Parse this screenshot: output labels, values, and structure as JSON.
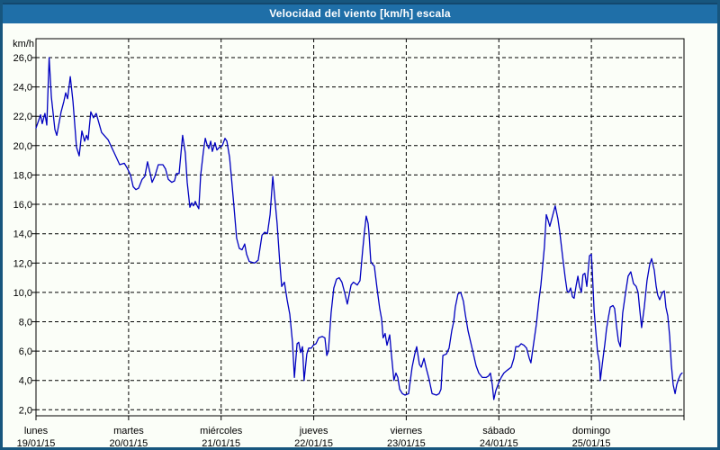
{
  "window": {
    "title": "Velocidad del viento [km/h] escala"
  },
  "colors": {
    "titlebar_bg": "#1F6FA8",
    "window_border": "#17567E",
    "background": "#FBFEF8",
    "series_line": "#0000C0",
    "grid": "#000000"
  },
  "chart_data": {
    "type": "line",
    "title": "Velocidad del viento [km/h] escala",
    "ylabel": "km/h",
    "xlabel": "",
    "ylim": [
      2,
      26
    ],
    "xlim_hours": [
      0,
      168
    ],
    "grid": "dashed",
    "legend": "none",
    "ytick_values": [
      2,
      4,
      6,
      8,
      10,
      12,
      14,
      16,
      18,
      20,
      22,
      24,
      26
    ],
    "ytick_labels": [
      "2,0",
      "4,0",
      "6,0",
      "8,0",
      "10,0",
      "12,0",
      "14,0",
      "16,0",
      "18,0",
      "20,0",
      "22,0",
      "24,0",
      "26,0"
    ],
    "days": [
      {
        "name": "lunes",
        "date": "19/01/15"
      },
      {
        "name": "martes",
        "date": "20/01/15"
      },
      {
        "name": "miércoles",
        "date": "21/01/15"
      },
      {
        "name": "jueves",
        "date": "22/01/15"
      },
      {
        "name": "viernes",
        "date": "23/01/15"
      },
      {
        "name": "sábado",
        "date": "24/01/15"
      },
      {
        "name": "domingo",
        "date": "25/01/15"
      }
    ],
    "series": [
      {
        "name": "Velocidad del viento [km/h]",
        "x_unit": "hours_from_start",
        "points": [
          [
            0,
            21.2
          ],
          [
            1.2,
            22.1
          ],
          [
            1.6,
            21.5
          ],
          [
            2.3,
            22.2
          ],
          [
            2.8,
            21.4
          ],
          [
            3.4,
            26
          ],
          [
            4,
            23.3
          ],
          [
            4.9,
            21.1
          ],
          [
            5.4,
            20.7
          ],
          [
            6.5,
            22.3
          ],
          [
            7.2,
            23
          ],
          [
            7.7,
            23.6
          ],
          [
            8.2,
            23.2
          ],
          [
            8.9,
            24.7
          ],
          [
            9.6,
            23
          ],
          [
            10.5,
            19.9
          ],
          [
            11.2,
            19.3
          ],
          [
            11.9,
            21
          ],
          [
            12.6,
            20.3
          ],
          [
            13.1,
            20.7
          ],
          [
            13.5,
            20.4
          ],
          [
            14.2,
            22.3
          ],
          [
            14.9,
            21.9
          ],
          [
            15.6,
            22.2
          ],
          [
            17,
            20.9
          ],
          [
            18.7,
            20.4
          ],
          [
            20.3,
            19.5
          ],
          [
            21.7,
            18.7
          ],
          [
            22.9,
            18.8
          ],
          [
            23.6,
            18.5
          ],
          [
            24.5,
            18
          ],
          [
            25.2,
            17.2
          ],
          [
            25.9,
            17
          ],
          [
            26.6,
            17.1
          ],
          [
            27.5,
            17.7
          ],
          [
            28.2,
            17.9
          ],
          [
            28.9,
            18.9
          ],
          [
            29.6,
            18.1
          ],
          [
            30.1,
            17.5
          ],
          [
            30.8,
            17.9
          ],
          [
            31.7,
            18.7
          ],
          [
            32.9,
            18.7
          ],
          [
            33.6,
            18.4
          ],
          [
            34.3,
            17.7
          ],
          [
            35.2,
            17.5
          ],
          [
            35.9,
            17.6
          ],
          [
            36.4,
            18.1
          ],
          [
            37.1,
            18.1
          ],
          [
            38,
            20.7
          ],
          [
            38.7,
            19.5
          ],
          [
            39.2,
            17.5
          ],
          [
            39.9,
            15.8
          ],
          [
            40.4,
            16.1
          ],
          [
            40.8,
            15.9
          ],
          [
            41.3,
            16.2
          ],
          [
            41.8,
            15.9
          ],
          [
            42.2,
            15.7
          ],
          [
            42.7,
            18
          ],
          [
            43.4,
            19.6
          ],
          [
            43.9,
            20.5
          ],
          [
            44.3,
            20.1
          ],
          [
            44.8,
            19.8
          ],
          [
            45.3,
            20.3
          ],
          [
            45.7,
            19.6
          ],
          [
            46.4,
            20.2
          ],
          [
            46.9,
            19.7
          ],
          [
            47.6,
            19.9
          ],
          [
            48.3,
            20
          ],
          [
            49,
            20.5
          ],
          [
            49.5,
            20.3
          ],
          [
            50.2,
            19.2
          ],
          [
            50.6,
            18
          ],
          [
            51.3,
            15.9
          ],
          [
            52,
            13.7
          ],
          [
            52.7,
            13
          ],
          [
            53.4,
            12.9
          ],
          [
            54.1,
            13.3
          ],
          [
            54.6,
            12.6
          ],
          [
            55.3,
            12.1
          ],
          [
            56.7,
            12
          ],
          [
            57.6,
            12.2
          ],
          [
            58.6,
            13.9
          ],
          [
            59.3,
            14.1
          ],
          [
            60,
            14
          ],
          [
            60.7,
            15.3
          ],
          [
            61.4,
            17.9
          ],
          [
            62.1,
            15.9
          ],
          [
            62.5,
            14.7
          ],
          [
            63.2,
            12
          ],
          [
            63.7,
            10.4
          ],
          [
            64.4,
            10.7
          ],
          [
            65.1,
            9.5
          ],
          [
            65.8,
            8.5
          ],
          [
            66.5,
            6.6
          ],
          [
            67,
            4.2
          ],
          [
            67.7,
            6.5
          ],
          [
            68.1,
            6.6
          ],
          [
            68.6,
            5.9
          ],
          [
            69.1,
            6.3
          ],
          [
            69.5,
            4
          ],
          [
            70.2,
            5.8
          ],
          [
            70.7,
            6.2
          ],
          [
            71.4,
            6.2
          ],
          [
            71.9,
            6.4
          ],
          [
            72.6,
            6.5
          ],
          [
            73.3,
            6.9
          ],
          [
            74.2,
            7
          ],
          [
            74.9,
            6.9
          ],
          [
            75.4,
            5.7
          ],
          [
            75.8,
            6
          ],
          [
            76.5,
            8.6
          ],
          [
            77.2,
            10.3
          ],
          [
            77.9,
            10.9
          ],
          [
            78.6,
            11
          ],
          [
            79.3,
            10.7
          ],
          [
            80,
            10
          ],
          [
            80.7,
            9.2
          ],
          [
            81.7,
            10.5
          ],
          [
            82.3,
            10.7
          ],
          [
            83.3,
            10.5
          ],
          [
            84,
            10.8
          ],
          [
            84.7,
            12.9
          ],
          [
            85.2,
            14.2
          ],
          [
            85.6,
            15.2
          ],
          [
            86.1,
            14.7
          ],
          [
            86.3,
            14.1
          ],
          [
            86.8,
            12.1
          ],
          [
            87.3,
            11.9
          ],
          [
            87.7,
            11.8
          ],
          [
            88.4,
            10.3
          ],
          [
            89.1,
            8.9
          ],
          [
            89.6,
            8.2
          ],
          [
            90,
            6.9
          ],
          [
            90.5,
            7.2
          ],
          [
            91,
            6.4
          ],
          [
            91.7,
            7.1
          ],
          [
            92.1,
            5.9
          ],
          [
            92.8,
            4
          ],
          [
            93.3,
            4.5
          ],
          [
            93.8,
            4.2
          ],
          [
            94.3,
            3.4
          ],
          [
            95,
            3.1
          ],
          [
            95.7,
            3
          ],
          [
            96.6,
            3.1
          ],
          [
            97.5,
            4.9
          ],
          [
            98.2,
            5.8
          ],
          [
            98.7,
            6.3
          ],
          [
            99.4,
            5.1
          ],
          [
            99.9,
            4.9
          ],
          [
            100.6,
            5.5
          ],
          [
            101.2,
            4.8
          ],
          [
            101.9,
            4.1
          ],
          [
            102.7,
            3.1
          ],
          [
            103.8,
            3
          ],
          [
            104.5,
            3.1
          ],
          [
            105,
            3.4
          ],
          [
            105.5,
            5.7
          ],
          [
            106.4,
            5.8
          ],
          [
            107.1,
            6.2
          ],
          [
            107.8,
            7.4
          ],
          [
            108.3,
            8
          ],
          [
            108.7,
            9
          ],
          [
            109.4,
            9.9
          ],
          [
            110.1,
            10
          ],
          [
            110.8,
            9.4
          ],
          [
            111.3,
            8.5
          ],
          [
            112,
            7.4
          ],
          [
            112.7,
            6.6
          ],
          [
            113.4,
            5.8
          ],
          [
            114.1,
            5
          ],
          [
            114.8,
            4.5
          ],
          [
            115.7,
            4.2
          ],
          [
            116.7,
            4.2
          ],
          [
            117.3,
            4.3
          ],
          [
            117.8,
            4.5
          ],
          [
            118.3,
            3.7
          ],
          [
            118.7,
            2.7
          ],
          [
            119.2,
            3.3
          ],
          [
            119.9,
            3.8
          ],
          [
            120.6,
            4.2
          ],
          [
            121.3,
            4.5
          ],
          [
            122.2,
            4.7
          ],
          [
            123.2,
            4.9
          ],
          [
            123.9,
            5.5
          ],
          [
            124.4,
            6.3
          ],
          [
            125.1,
            6.3
          ],
          [
            125.8,
            6.5
          ],
          [
            126.5,
            6.4
          ],
          [
            127.2,
            6.2
          ],
          [
            127.9,
            5.5
          ],
          [
            128.3,
            5.2
          ],
          [
            129,
            6.5
          ],
          [
            129.7,
            7.8
          ],
          [
            130.4,
            9.5
          ],
          [
            130.9,
            10.5
          ],
          [
            131.4,
            11.9
          ],
          [
            131.8,
            13.1
          ],
          [
            132.3,
            15.3
          ],
          [
            132.8,
            14.9
          ],
          [
            133.2,
            14.5
          ],
          [
            133.9,
            15.2
          ],
          [
            134.6,
            15.9
          ],
          [
            135.3,
            15
          ],
          [
            135.8,
            14.1
          ],
          [
            136.5,
            12.5
          ],
          [
            137.2,
            11
          ],
          [
            137.7,
            10.1
          ],
          [
            138.1,
            10
          ],
          [
            138.6,
            10.3
          ],
          [
            139.1,
            9.7
          ],
          [
            139.5,
            9.6
          ],
          [
            140,
            10.4
          ],
          [
            140.5,
            11.1
          ],
          [
            140.9,
            10.4
          ],
          [
            141.4,
            10
          ],
          [
            141.8,
            11.2
          ],
          [
            142.3,
            11.3
          ],
          [
            142.8,
            10.4
          ],
          [
            143.5,
            12.5
          ],
          [
            144,
            12.6
          ],
          [
            144.2,
            11.6
          ],
          [
            144.7,
            8.8
          ],
          [
            145.2,
            7.1
          ],
          [
            145.6,
            5.9
          ],
          [
            146.1,
            5.2
          ],
          [
            146.3,
            4
          ],
          [
            147,
            5.5
          ],
          [
            147.5,
            6.5
          ],
          [
            147.9,
            7.5
          ],
          [
            148.4,
            8.3
          ],
          [
            148.9,
            9
          ],
          [
            149.6,
            9.1
          ],
          [
            150,
            8.9
          ],
          [
            150.5,
            7.7
          ],
          [
            151,
            6.7
          ],
          [
            151.5,
            6.3
          ],
          [
            152.1,
            8.6
          ],
          [
            152.8,
            9.9
          ],
          [
            153.5,
            11.1
          ],
          [
            154.2,
            11.4
          ],
          [
            154.9,
            10.6
          ],
          [
            155.6,
            10.4
          ],
          [
            156.1,
            10
          ],
          [
            156.5,
            8.9
          ],
          [
            157,
            7.6
          ],
          [
            157.7,
            9
          ],
          [
            158.4,
            10.8
          ],
          [
            159.1,
            11.9
          ],
          [
            159.6,
            12.3
          ],
          [
            160.3,
            11.5
          ],
          [
            160.8,
            10.4
          ],
          [
            161.2,
            9.8
          ],
          [
            161.7,
            9.5
          ],
          [
            162.4,
            10
          ],
          [
            162.9,
            10.1
          ],
          [
            163.3,
            9
          ],
          [
            163.8,
            8.4
          ],
          [
            164.3,
            7
          ],
          [
            164.7,
            5.1
          ],
          [
            165.2,
            3.7
          ],
          [
            165.7,
            3.1
          ],
          [
            166.1,
            3.7
          ],
          [
            166.6,
            4.1
          ],
          [
            167.1,
            4.4
          ],
          [
            167.5,
            4.5
          ]
        ]
      }
    ]
  }
}
